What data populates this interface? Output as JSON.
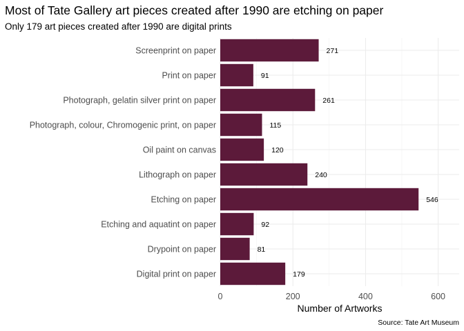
{
  "chart_data": {
    "type": "bar",
    "orientation": "horizontal",
    "title": "Most of Tate Gallery art pieces created after 1990 are etching on paper",
    "subtitle": "Only 179 art pieces created after 1990 are digital prints",
    "xlabel": "Number of Artworks",
    "ylabel": "",
    "caption": "Source: Tate Art Museum",
    "categories": [
      "Screenprint on paper",
      "Print on paper",
      "Photograph, gelatin silver print on paper",
      "Photograph, colour, Chromogenic print, on paper",
      "Oil paint on canvas",
      "Lithograph on paper",
      "Etching on paper",
      "Etching and aquatint on paper",
      "Drypoint on paper",
      "Digital print on paper"
    ],
    "values": [
      271,
      91,
      261,
      115,
      120,
      240,
      546,
      92,
      81,
      179
    ],
    "xlim": [
      0,
      650
    ],
    "xticks": [
      0,
      200,
      400,
      600
    ],
    "grid": true,
    "bar_color": "#5c1a3a"
  }
}
